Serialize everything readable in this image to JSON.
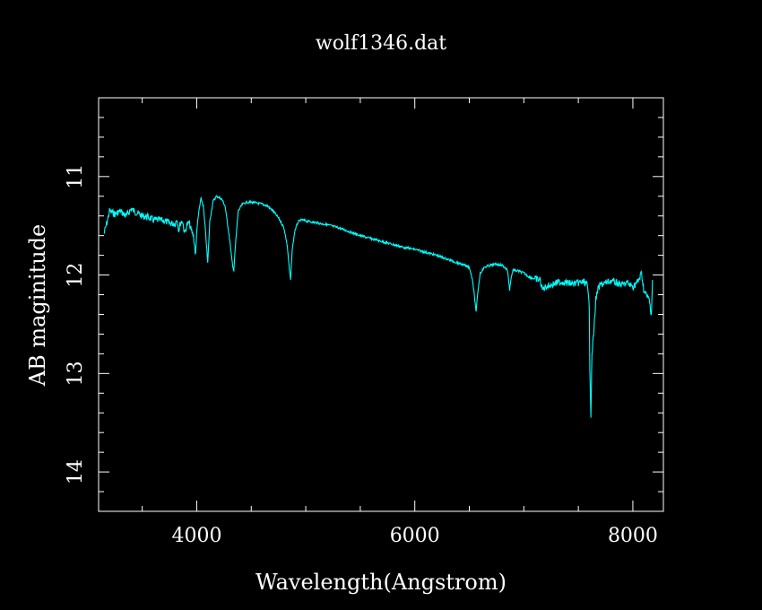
{
  "chart_data": {
    "type": "line",
    "title": "wolf1346.dat",
    "xlabel": "Wavelength(Angstrom)",
    "ylabel": "AB maginitude",
    "xlim": [
      3100,
      8280
    ],
    "ylim": [
      10.2,
      14.4
    ],
    "y_inverted": true,
    "xticks": [
      4000,
      6000,
      8000
    ],
    "yticks": [
      11,
      12,
      13,
      14
    ],
    "x_minor_step": 500,
    "y_minor_step": 0.2,
    "grid": false,
    "colors": {
      "background": "#000000",
      "axes": "#ffffff",
      "text": "#ffffff",
      "series": "#00ffff"
    },
    "series": [
      {
        "name": "",
        "x": [
          3150,
          3180,
          3200,
          3250,
          3300,
          3350,
          3400,
          3450,
          3500,
          3550,
          3600,
          3650,
          3700,
          3750,
          3800,
          3820,
          3835,
          3850,
          3870,
          3889,
          3910,
          3930,
          3950,
          3970,
          3990,
          4000,
          4020,
          4040,
          4060,
          4080,
          4101,
          4120,
          4150,
          4180,
          4200,
          4230,
          4260,
          4300,
          4330,
          4340,
          4355,
          4380,
          4420,
          4460,
          4500,
          4550,
          4600,
          4650,
          4700,
          4750,
          4800,
          4830,
          4850,
          4861,
          4875,
          4900,
          4930,
          4960,
          5000,
          5100,
          5200,
          5300,
          5400,
          5500,
          5600,
          5700,
          5800,
          5900,
          6000,
          6100,
          6200,
          6300,
          6400,
          6450,
          6500,
          6530,
          6550,
          6563,
          6575,
          6600,
          6640,
          6700,
          6750,
          6800,
          6850,
          6870,
          6880,
          6900,
          6950,
          7000,
          7050,
          7100,
          7150,
          7170,
          7200,
          7250,
          7300,
          7350,
          7400,
          7450,
          7500,
          7550,
          7580,
          7600,
          7605,
          7615,
          7625,
          7640,
          7660,
          7680,
          7700,
          7750,
          7800,
          7850,
          7900,
          7950,
          8000,
          8050,
          8080,
          8100,
          8120,
          8150,
          8170,
          8180
        ],
        "y": [
          11.58,
          11.45,
          11.35,
          11.38,
          11.35,
          11.4,
          11.33,
          11.37,
          11.4,
          11.41,
          11.44,
          11.44,
          11.45,
          11.47,
          11.48,
          11.43,
          11.55,
          11.47,
          11.45,
          11.58,
          11.49,
          11.47,
          11.55,
          11.6,
          11.8,
          11.55,
          11.35,
          11.22,
          11.3,
          11.55,
          11.88,
          11.45,
          11.25,
          11.2,
          11.21,
          11.23,
          11.3,
          11.62,
          11.92,
          11.95,
          11.7,
          11.35,
          11.28,
          11.26,
          11.26,
          11.27,
          11.28,
          11.3,
          11.35,
          11.42,
          11.52,
          11.7,
          11.95,
          12.05,
          11.75,
          11.55,
          11.46,
          11.44,
          11.45,
          11.47,
          11.49,
          11.52,
          11.56,
          11.6,
          11.63,
          11.66,
          11.69,
          11.72,
          11.74,
          11.77,
          11.8,
          11.84,
          11.88,
          11.9,
          11.92,
          12.05,
          12.25,
          12.38,
          12.2,
          11.98,
          11.92,
          11.9,
          11.89,
          11.9,
          11.95,
          12.15,
          12.05,
          11.95,
          11.96,
          11.98,
          12.02,
          12.04,
          12.05,
          12.15,
          12.12,
          12.1,
          12.08,
          12.07,
          12.08,
          12.09,
          12.08,
          12.07,
          12.1,
          12.3,
          12.9,
          13.42,
          12.8,
          12.6,
          12.25,
          12.15,
          12.1,
          12.08,
          12.06,
          12.08,
          12.1,
          12.08,
          12.12,
          12.06,
          11.98,
          12.15,
          12.2,
          12.25,
          12.4,
          12.05
        ]
      }
    ]
  }
}
